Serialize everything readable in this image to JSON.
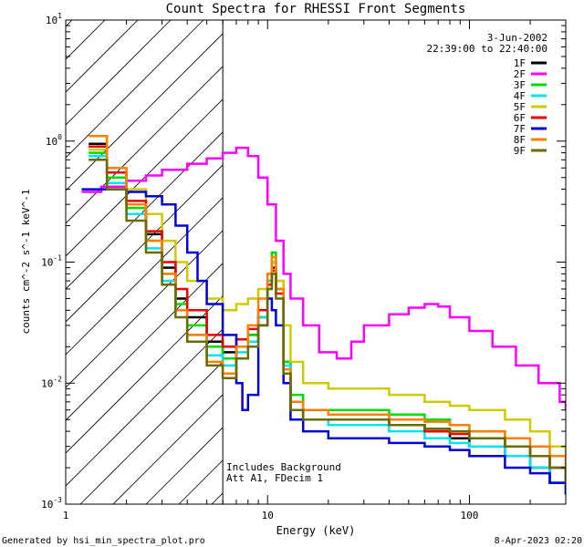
{
  "chart_data": {
    "type": "line",
    "title": "Count Spectra for RHESSI Front Segments",
    "xlabel": "Energy (keV)",
    "ylabel": "counts cm^-2 s^-1 keV^-1",
    "xscale": "log",
    "yscale": "log",
    "xlim": [
      1,
      300
    ],
    "ylim": [
      0.001,
      10
    ],
    "x_ticks": [
      {
        "value": 1,
        "label": "1"
      },
      {
        "value": 10,
        "label": "10"
      },
      {
        "value": 100,
        "label": "100"
      }
    ],
    "y_ticks": [
      {
        "value": 0.001,
        "base": "10",
        "exp": "-3"
      },
      {
        "value": 0.01,
        "base": "10",
        "exp": "-2"
      },
      {
        "value": 0.1,
        "base": "10",
        "exp": "-1"
      },
      {
        "value": 1,
        "base": "10",
        "exp": "0"
      },
      {
        "value": 10,
        "base": "10",
        "exp": "1"
      }
    ],
    "hatched_region_keV": [
      1,
      6
    ],
    "attenuator_threshold_keV": 6,
    "legend": {
      "position": "top-right",
      "date": "3-Jun-2002",
      "time_range": "22:39:00 to 22:40:00"
    },
    "annotations": [
      "Includes Background",
      "Att A1, FDecim  1"
    ],
    "series": [
      {
        "name": "1F",
        "color": "#000000",
        "points": [
          [
            1.3,
            0.95
          ],
          [
            1.6,
            0.55
          ],
          [
            2,
            0.3
          ],
          [
            2.5,
            0.17
          ],
          [
            3,
            0.09
          ],
          [
            3.5,
            0.05
          ],
          [
            4,
            0.035
          ],
          [
            5,
            0.022
          ],
          [
            6,
            0.018
          ],
          [
            7,
            0.02
          ],
          [
            8,
            0.025
          ],
          [
            9,
            0.035
          ],
          [
            10,
            0.07
          ],
          [
            10.5,
            0.09
          ],
          [
            11,
            0.06
          ],
          [
            12,
            0.015
          ],
          [
            13,
            0.006
          ],
          [
            15,
            0.005
          ],
          [
            20,
            0.005
          ],
          [
            30,
            0.005
          ],
          [
            40,
            0.0045
          ],
          [
            60,
            0.004
          ],
          [
            80,
            0.0035
          ],
          [
            100,
            0.003
          ],
          [
            150,
            0.0025
          ],
          [
            200,
            0.002
          ],
          [
            250,
            0.0015
          ],
          [
            300,
            0.0012
          ]
        ]
      },
      {
        "name": "2F",
        "color": "#ff00ff",
        "points": [
          [
            1.2,
            0.38
          ],
          [
            1.5,
            0.42
          ],
          [
            2,
            0.47
          ],
          [
            2.5,
            0.52
          ],
          [
            3,
            0.58
          ],
          [
            4,
            0.65
          ],
          [
            5,
            0.72
          ],
          [
            6,
            0.8
          ],
          [
            7,
            0.88
          ],
          [
            8,
            0.75
          ],
          [
            9,
            0.5
          ],
          [
            10,
            0.3
          ],
          [
            11,
            0.15
          ],
          [
            12,
            0.08
          ],
          [
            13,
            0.05
          ],
          [
            15,
            0.03
          ],
          [
            18,
            0.018
          ],
          [
            22,
            0.016
          ],
          [
            26,
            0.022
          ],
          [
            30,
            0.03
          ],
          [
            40,
            0.037
          ],
          [
            50,
            0.042
          ],
          [
            60,
            0.045
          ],
          [
            70,
            0.043
          ],
          [
            80,
            0.035
          ],
          [
            100,
            0.027
          ],
          [
            130,
            0.02
          ],
          [
            170,
            0.014
          ],
          [
            220,
            0.01
          ],
          [
            280,
            0.007
          ],
          [
            300,
            0.006
          ]
        ]
      },
      {
        "name": "3F",
        "color": "#00dd00",
        "points": [
          [
            1.3,
            0.8
          ],
          [
            1.6,
            0.5
          ],
          [
            2,
            0.28
          ],
          [
            2.5,
            0.15
          ],
          [
            3,
            0.08
          ],
          [
            3.5,
            0.045
          ],
          [
            4,
            0.03
          ],
          [
            5,
            0.02
          ],
          [
            6,
            0.016
          ],
          [
            7,
            0.02
          ],
          [
            8,
            0.025
          ],
          [
            9,
            0.04
          ],
          [
            10,
            0.08
          ],
          [
            10.5,
            0.12
          ],
          [
            11,
            0.07
          ],
          [
            12,
            0.015
          ],
          [
            13,
            0.008
          ],
          [
            15,
            0.006
          ],
          [
            20,
            0.006
          ],
          [
            30,
            0.006
          ],
          [
            40,
            0.0055
          ],
          [
            60,
            0.005
          ],
          [
            80,
            0.0045
          ],
          [
            100,
            0.004
          ],
          [
            150,
            0.003
          ],
          [
            200,
            0.0025
          ],
          [
            250,
            0.002
          ],
          [
            300,
            0.0015
          ]
        ]
      },
      {
        "name": "4F",
        "color": "#00e5ee",
        "points": [
          [
            1.3,
            0.75
          ],
          [
            1.6,
            0.45
          ],
          [
            2,
            0.25
          ],
          [
            2.5,
            0.13
          ],
          [
            3,
            0.07
          ],
          [
            3.5,
            0.04
          ],
          [
            4,
            0.025
          ],
          [
            5,
            0.017
          ],
          [
            6,
            0.014
          ],
          [
            7,
            0.018
          ],
          [
            8,
            0.022
          ],
          [
            9,
            0.035
          ],
          [
            10,
            0.07
          ],
          [
            10.5,
            0.1
          ],
          [
            11,
            0.06
          ],
          [
            12,
            0.014
          ],
          [
            13,
            0.007
          ],
          [
            15,
            0.005
          ],
          [
            20,
            0.0045
          ],
          [
            30,
            0.0045
          ],
          [
            40,
            0.004
          ],
          [
            60,
            0.0035
          ],
          [
            80,
            0.0032
          ],
          [
            100,
            0.003
          ],
          [
            150,
            0.0025
          ],
          [
            200,
            0.002
          ],
          [
            250,
            0.0015
          ],
          [
            300,
            0.0012
          ]
        ]
      },
      {
        "name": "5F",
        "color": "#cccc00",
        "points": [
          [
            1.3,
            0.85
          ],
          [
            1.6,
            0.6
          ],
          [
            2,
            0.4
          ],
          [
            2.5,
            0.25
          ],
          [
            3,
            0.15
          ],
          [
            3.5,
            0.1
          ],
          [
            4,
            0.07
          ],
          [
            5,
            0.05
          ],
          [
            6,
            0.04
          ],
          [
            7,
            0.045
          ],
          [
            8,
            0.05
          ],
          [
            9,
            0.06
          ],
          [
            10,
            0.08
          ],
          [
            10.5,
            0.1
          ],
          [
            11,
            0.07
          ],
          [
            12,
            0.03
          ],
          [
            13,
            0.015
          ],
          [
            15,
            0.01
          ],
          [
            20,
            0.009
          ],
          [
            30,
            0.009
          ],
          [
            40,
            0.008
          ],
          [
            60,
            0.007
          ],
          [
            80,
            0.0065
          ],
          [
            100,
            0.006
          ],
          [
            150,
            0.005
          ],
          [
            200,
            0.004
          ],
          [
            250,
            0.003
          ],
          [
            300,
            0.0025
          ]
        ]
      },
      {
        "name": "6F",
        "color": "#ee0000",
        "points": [
          [
            1.3,
            0.9
          ],
          [
            1.6,
            0.55
          ],
          [
            2,
            0.32
          ],
          [
            2.5,
            0.18
          ],
          [
            3,
            0.1
          ],
          [
            3.5,
            0.06
          ],
          [
            4,
            0.04
          ],
          [
            5,
            0.025
          ],
          [
            6,
            0.02
          ],
          [
            7,
            0.023
          ],
          [
            8,
            0.028
          ],
          [
            9,
            0.04
          ],
          [
            10,
            0.065
          ],
          [
            10.5,
            0.085
          ],
          [
            11,
            0.055
          ],
          [
            12,
            0.012
          ],
          [
            13,
            0.006
          ],
          [
            15,
            0.005
          ],
          [
            20,
            0.005
          ],
          [
            30,
            0.005
          ],
          [
            40,
            0.0045
          ],
          [
            60,
            0.004
          ],
          [
            80,
            0.0038
          ],
          [
            100,
            0.0035
          ],
          [
            150,
            0.003
          ],
          [
            200,
            0.0025
          ],
          [
            250,
            0.002
          ],
          [
            300,
            0.0015
          ]
        ]
      },
      {
        "name": "7F",
        "color": "#0000dd",
        "points": [
          [
            1.2,
            0.4
          ],
          [
            1.5,
            0.4
          ],
          [
            2,
            0.38
          ],
          [
            2.5,
            0.35
          ],
          [
            3,
            0.3
          ],
          [
            3.5,
            0.2
          ],
          [
            4,
            0.12
          ],
          [
            4.5,
            0.07
          ],
          [
            5,
            0.045
          ],
          [
            6,
            0.025
          ],
          [
            7,
            0.01
          ],
          [
            7.5,
            0.006
          ],
          [
            8,
            0.008
          ],
          [
            9,
            0.03
          ],
          [
            10,
            0.05
          ],
          [
            10.5,
            0.04
          ],
          [
            11,
            0.03
          ],
          [
            12,
            0.01
          ],
          [
            13,
            0.005
          ],
          [
            15,
            0.004
          ],
          [
            20,
            0.0035
          ],
          [
            30,
            0.0035
          ],
          [
            40,
            0.0032
          ],
          [
            60,
            0.003
          ],
          [
            80,
            0.0028
          ],
          [
            100,
            0.0025
          ],
          [
            150,
            0.002
          ],
          [
            200,
            0.0018
          ],
          [
            250,
            0.0015
          ],
          [
            300,
            0.0012
          ]
        ]
      },
      {
        "name": "8F",
        "color": "#ff7f00",
        "points": [
          [
            1.3,
            1.1
          ],
          [
            1.6,
            0.6
          ],
          [
            2,
            0.3
          ],
          [
            2.5,
            0.15
          ],
          [
            3,
            0.08
          ],
          [
            3.5,
            0.04
          ],
          [
            4,
            0.025
          ],
          [
            5,
            0.015
          ],
          [
            6,
            0.012
          ],
          [
            7,
            0.02
          ],
          [
            8,
            0.03
          ],
          [
            9,
            0.05
          ],
          [
            10,
            0.08
          ],
          [
            10.5,
            0.11
          ],
          [
            11,
            0.06
          ],
          [
            12,
            0.013
          ],
          [
            13,
            0.007
          ],
          [
            15,
            0.006
          ],
          [
            20,
            0.0055
          ],
          [
            30,
            0.0055
          ],
          [
            40,
            0.005
          ],
          [
            60,
            0.0048
          ],
          [
            80,
            0.0045
          ],
          [
            100,
            0.004
          ],
          [
            150,
            0.0035
          ],
          [
            200,
            0.003
          ],
          [
            250,
            0.0025
          ],
          [
            300,
            0.002
          ]
        ]
      },
      {
        "name": "9F",
        "color": "#6b6b00",
        "points": [
          [
            1.3,
            0.7
          ],
          [
            1.6,
            0.4
          ],
          [
            2,
            0.22
          ],
          [
            2.5,
            0.12
          ],
          [
            3,
            0.065
          ],
          [
            3.5,
            0.035
          ],
          [
            4,
            0.022
          ],
          [
            5,
            0.014
          ],
          [
            6,
            0.011
          ],
          [
            7,
            0.016
          ],
          [
            8,
            0.02
          ],
          [
            9,
            0.03
          ],
          [
            10,
            0.06
          ],
          [
            10.5,
            0.08
          ],
          [
            11,
            0.05
          ],
          [
            12,
            0.012
          ],
          [
            13,
            0.006
          ],
          [
            15,
            0.005
          ],
          [
            20,
            0.005
          ],
          [
            30,
            0.005
          ],
          [
            40,
            0.0045
          ],
          [
            60,
            0.0042
          ],
          [
            80,
            0.004
          ],
          [
            100,
            0.0035
          ],
          [
            150,
            0.003
          ],
          [
            200,
            0.0025
          ],
          [
            250,
            0.002
          ],
          [
            300,
            0.0015
          ]
        ]
      }
    ]
  },
  "footer": {
    "generated_by": "Generated by hsi_min_spectra_plot.pro",
    "timestamp": "8-Apr-2023 02:20"
  }
}
